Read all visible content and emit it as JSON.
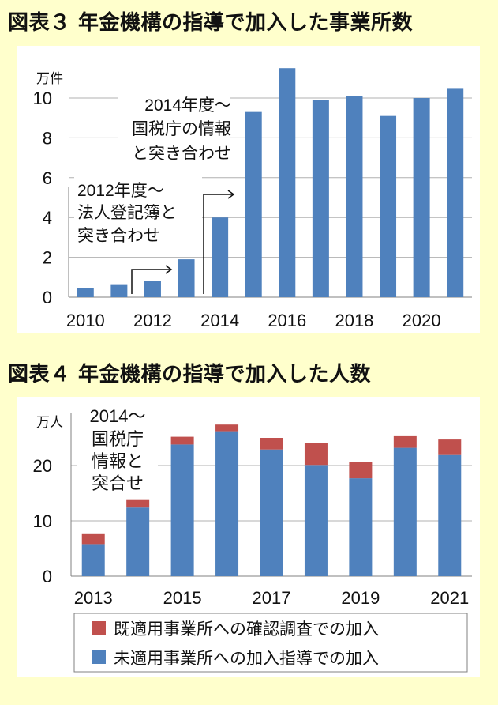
{
  "figure3_title": "図表３ 年金機構の指導で加入した事業所数",
  "figure4_title": "図表４ 年金機構の指導で加入した人数",
  "chart_data": [
    {
      "type": "bar",
      "title": "図表３ 年金機構の指導で加入した事業所数",
      "unit": "万件",
      "categories": [
        "2010",
        "2011",
        "2012",
        "2013",
        "2014",
        "2015",
        "2016",
        "2017",
        "2018",
        "2019",
        "2020",
        "2021"
      ],
      "x_tick_labels": [
        "2010",
        "2012",
        "2014",
        "2016",
        "2018",
        "2020"
      ],
      "values": [
        0.45,
        0.65,
        0.8,
        1.9,
        4.0,
        9.3,
        11.5,
        9.9,
        10.1,
        9.1,
        10.0,
        10.5
      ],
      "ylim": [
        0,
        12
      ],
      "y_ticks": [
        0,
        2,
        4,
        6,
        8,
        10
      ],
      "grid": true,
      "color": "#4f81bd",
      "annotations": [
        {
          "lines": [
            "2014年度～",
            "国税庁の情報",
            "と突き合わせ"
          ]
        },
        {
          "lines": [
            "2012年度～",
            "法人登記簿と",
            "突き合わせ"
          ]
        }
      ]
    },
    {
      "type": "bar",
      "stacked": true,
      "title": "図表４ 年金機構の指導で加入した人数",
      "unit": "万人",
      "categories": [
        "2013",
        "2014",
        "2015",
        "2016",
        "2017",
        "2018",
        "2019",
        "2020",
        "2021"
      ],
      "x_tick_labels": [
        "2013",
        "2015",
        "2017",
        "2019",
        "2021"
      ],
      "ylim": [
        0,
        29
      ],
      "y_ticks": [
        0,
        10,
        20
      ],
      "grid": true,
      "legend_position": "bottom",
      "series": [
        {
          "name": "未適用事業所への加入指導での加入",
          "color": "#4f81bd",
          "values": [
            5.8,
            12.4,
            23.8,
            26.2,
            22.9,
            20.1,
            17.7,
            23.2,
            21.9
          ]
        },
        {
          "name": "既適用事業所への確認調査での加入",
          "color": "#c0504d",
          "values": [
            1.8,
            1.5,
            1.4,
            1.2,
            2.1,
            3.9,
            2.9,
            2.1,
            2.8
          ]
        }
      ],
      "annotations": [
        {
          "lines": [
            "2014～",
            "国税庁",
            "情報と",
            "突合せ"
          ]
        }
      ]
    }
  ]
}
